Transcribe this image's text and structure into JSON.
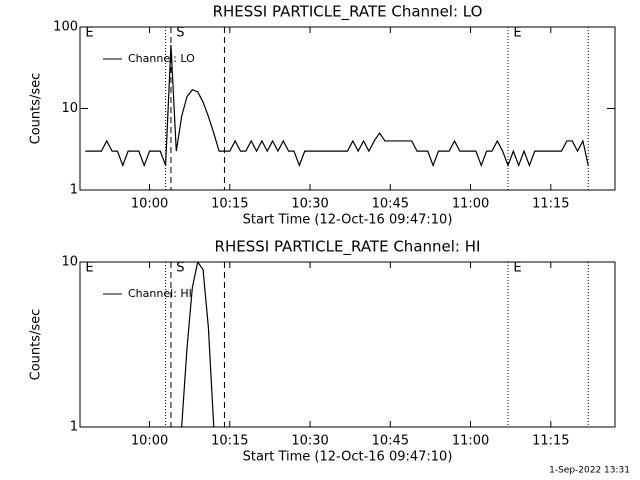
{
  "footer": "1-Sep-2022 13:31",
  "chart_data": [
    {
      "type": "line",
      "title": "RHESSI PARTICLE_RATE Channel: LO",
      "x_label": "Start Time (12-Oct-16 09:47:10)",
      "y_label": "Counts/sec",
      "log_scale": true,
      "xlim": [
        "09:47",
        "11:27"
      ],
      "xticks": [
        "10:00",
        "10:15",
        "10:30",
        "10:45",
        "11:00",
        "11:15"
      ],
      "ylim": [
        1,
        100
      ],
      "yticks": [
        1,
        10,
        100
      ],
      "x": [
        "09:48",
        "09:49",
        "09:50",
        "09:51",
        "09:52",
        "09:53",
        "09:54",
        "09:55",
        "09:56",
        "09:57",
        "09:58",
        "09:59",
        "10:00",
        "10:01",
        "10:02",
        "10:03",
        "10:04",
        "10:05",
        "10:06",
        "10:07",
        "10:08",
        "10:09",
        "10:10",
        "10:11",
        "10:12",
        "10:13",
        "10:14",
        "10:15",
        "10:16",
        "10:17",
        "10:18",
        "10:19",
        "10:20",
        "10:21",
        "10:22",
        "10:23",
        "10:24",
        "10:25",
        "10:26",
        "10:27",
        "10:28",
        "10:29",
        "10:30",
        "10:31",
        "10:32",
        "10:33",
        "10:34",
        "10:35",
        "10:36",
        "10:37",
        "10:38",
        "10:39",
        "10:40",
        "10:41",
        "10:42",
        "10:43",
        "10:44",
        "10:45",
        "10:46",
        "10:47",
        "10:48",
        "10:49",
        "10:50",
        "10:51",
        "10:52",
        "10:53",
        "10:54",
        "10:55",
        "10:56",
        "10:57",
        "10:58",
        "10:59",
        "11:00",
        "11:01",
        "11:02",
        "11:03",
        "11:04",
        "11:05",
        "11:06",
        "11:07",
        "11:08",
        "11:09",
        "11:10",
        "11:11",
        "11:12",
        "11:13",
        "11:14",
        "11:15",
        "11:16",
        "11:17",
        "11:18",
        "11:19",
        "11:20",
        "11:21",
        "11:22"
      ],
      "series": [
        {
          "name": "Channel: LO",
          "color": "#000000",
          "values": [
            3,
            3,
            3,
            3,
            4,
            3,
            3,
            2,
            3,
            3,
            3,
            2,
            3,
            3,
            3,
            2,
            60,
            3,
            8,
            14,
            17,
            16,
            12,
            8,
            5,
            3,
            3,
            3,
            4,
            3,
            3,
            4,
            3,
            4,
            3,
            4,
            3,
            4,
            3,
            3,
            2,
            3,
            3,
            3,
            3,
            3,
            3,
            3,
            3,
            3,
            4,
            3,
            4,
            3,
            4,
            5,
            4,
            4,
            4,
            4,
            4,
            4,
            3,
            3,
            3,
            2,
            3,
            3,
            3,
            4,
            3,
            3,
            3,
            3,
            2,
            3,
            3,
            4,
            3,
            2,
            3,
            2,
            3,
            2,
            3,
            3,
            3,
            3,
            3,
            3,
            4,
            4,
            3,
            4,
            2
          ]
        }
      ],
      "markers": [
        {
          "x": "10:03",
          "style": "dotted"
        },
        {
          "x": "10:04",
          "style": "dashed"
        },
        {
          "x": "10:14",
          "style": "dashed"
        },
        {
          "x": "11:07",
          "style": "dotted"
        },
        {
          "x": "11:22",
          "style": "dotted"
        }
      ],
      "annotations": [
        {
          "text": "E",
          "x": "09:48"
        },
        {
          "text": "S",
          "x": "10:05"
        },
        {
          "text": "E",
          "x": "11:08"
        }
      ]
    },
    {
      "type": "line",
      "title": "RHESSI PARTICLE_RATE Channel: HI",
      "x_label": "Start Time (12-Oct-16 09:47:10)",
      "y_label": "Counts/sec",
      "log_scale": true,
      "xlim": [
        "09:47",
        "11:27"
      ],
      "xticks": [
        "10:00",
        "10:15",
        "10:30",
        "10:45",
        "11:00",
        "11:15"
      ],
      "ylim": [
        1,
        10
      ],
      "yticks": [
        1,
        10
      ],
      "x": [
        "10:06",
        "10:07",
        "10:08",
        "10:09",
        "10:10",
        "10:11",
        "10:12"
      ],
      "series": [
        {
          "name": "Channel: HI",
          "color": "#000000",
          "values": [
            1,
            3,
            7,
            10,
            9,
            4,
            1
          ]
        }
      ],
      "markers": [
        {
          "x": "10:03",
          "style": "dotted"
        },
        {
          "x": "10:04",
          "style": "dashed"
        },
        {
          "x": "10:14",
          "style": "dashed"
        },
        {
          "x": "11:07",
          "style": "dotted"
        },
        {
          "x": "11:22",
          "style": "dotted"
        }
      ],
      "annotations": [
        {
          "text": "E",
          "x": "09:48"
        },
        {
          "text": "S",
          "x": "10:05"
        },
        {
          "text": "E",
          "x": "11:08"
        }
      ]
    }
  ]
}
